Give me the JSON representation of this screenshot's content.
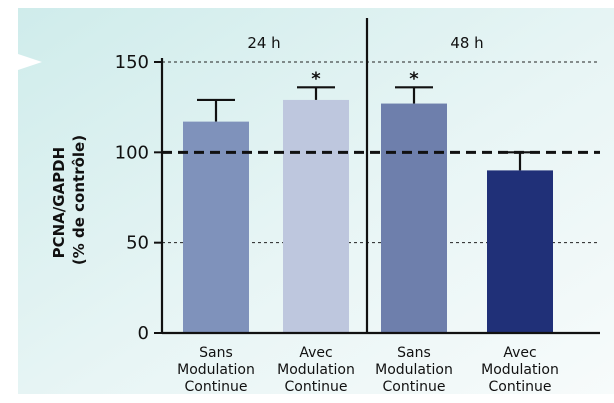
{
  "chart_data": {
    "type": "bar",
    "panels": [
      {
        "label": "24 h",
        "categories": [
          "Sans Modulation Continue",
          "Avec Modulation Continue"
        ]
      },
      {
        "label": "48 h",
        "categories": [
          "Sans Modulation Continue",
          "Avec Modulation Continue"
        ]
      }
    ],
    "categories": [
      [
        "Sans",
        "Modulation",
        "Continue"
      ],
      [
        "Avec",
        "Modulation",
        "Continue"
      ],
      [
        "Sans",
        "Modulation",
        "Continue"
      ],
      [
        "Avec",
        "Modulation",
        "Continue"
      ]
    ],
    "values": [
      117,
      129,
      127,
      90
    ],
    "errors": [
      12,
      7,
      9,
      10
    ],
    "significance": [
      "",
      "*",
      "*",
      ""
    ],
    "bar_colors": [
      "#7f92bb",
      "#bec7de",
      "#6e7fac",
      "#203078"
    ],
    "ylabel_lines": [
      "PCNA/GAPDH",
      "(% de contrôle)"
    ],
    "ylim": [
      0,
      150
    ],
    "yticks": [
      0,
      50,
      100,
      150
    ],
    "reference_line": 100,
    "dotted_gridlines": [
      50,
      150
    ]
  },
  "colors": {
    "background_tint": "#d8efef",
    "axis": "#111111"
  }
}
